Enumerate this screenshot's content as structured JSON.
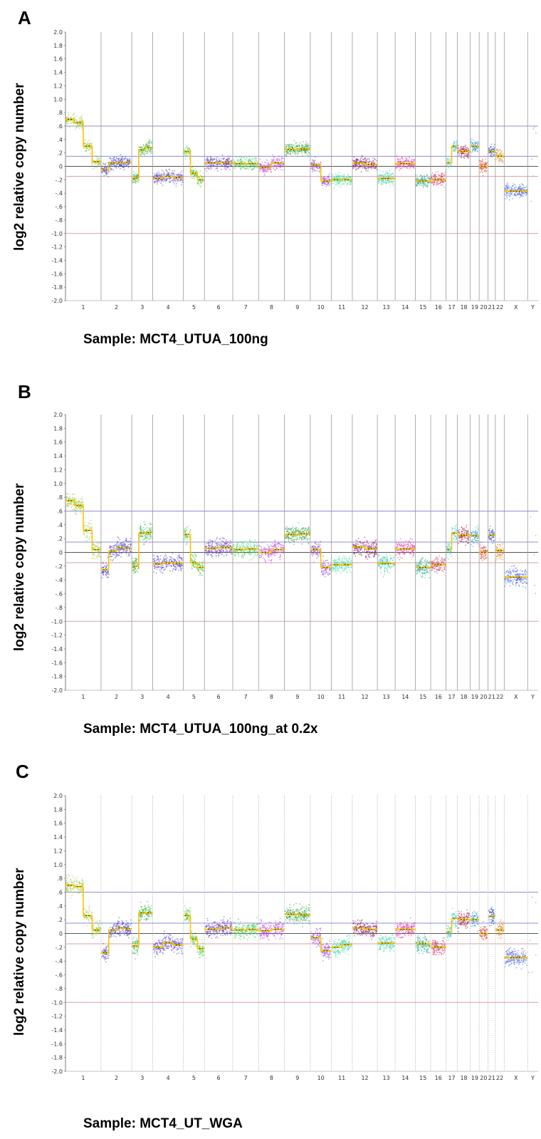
{
  "chart_data": [
    {
      "type": "scatter",
      "panel": "A",
      "ylabel": "log2 relative copy number",
      "sample": "Sample: MCT4_UTUA_100ng",
      "ylim": [
        -2.0,
        2.0
      ],
      "yticks": [
        "2.0",
        "1.8",
        "1.6",
        "1.4",
        "1.2",
        "1.0",
        ".8",
        ".6",
        ".4",
        ".2",
        "0",
        "-.2",
        "-.4",
        "-.6",
        "-.8",
        "-1.0",
        "-1.2",
        "-1.4",
        "-1.6",
        "-1.8",
        "-2.0"
      ],
      "chromosomes": [
        "1",
        "2",
        "3",
        "4",
        "5",
        "6",
        "7",
        "8",
        "9",
        "10",
        "11",
        "12",
        "13",
        "14",
        "15",
        "16",
        "17",
        "18",
        "19",
        "20",
        "21",
        "22",
        "X",
        "Y"
      ],
      "reference_lines": [
        0.6,
        0.15,
        0,
        -0.15,
        -1.0
      ],
      "segments": [
        {
          "chr": "1",
          "levels": [
            0.7,
            0.65,
            0.3,
            0.07
          ]
        },
        {
          "chr": "2",
          "levels": [
            -0.05,
            0.05,
            0.06,
            0.06
          ]
        },
        {
          "chr": "3",
          "levels": [
            -0.18,
            0.25,
            0.28
          ]
        },
        {
          "chr": "4",
          "levels": [
            -0.18,
            -0.15,
            -0.17
          ]
        },
        {
          "chr": "5",
          "levels": [
            0.22,
            -0.1,
            -0.2
          ]
        },
        {
          "chr": "6",
          "levels": [
            0.05,
            0.06
          ]
        },
        {
          "chr": "7",
          "levels": [
            0.04,
            0.04
          ]
        },
        {
          "chr": "8",
          "levels": [
            -0.02,
            0.05
          ]
        },
        {
          "chr": "9",
          "levels": [
            0.25,
            0.26
          ]
        },
        {
          "chr": "10",
          "levels": [
            0.02,
            -0.22
          ]
        },
        {
          "chr": "11",
          "levels": [
            -0.2,
            -0.2
          ]
        },
        {
          "chr": "12",
          "levels": [
            0.05,
            0.03
          ]
        },
        {
          "chr": "13",
          "levels": [
            -0.18
          ]
        },
        {
          "chr": "14",
          "levels": [
            0.04
          ]
        },
        {
          "chr": "15",
          "levels": [
            -0.22
          ]
        },
        {
          "chr": "16",
          "levels": [
            -0.2
          ]
        },
        {
          "chr": "17",
          "levels": [
            0.05,
            0.3
          ]
        },
        {
          "chr": "18",
          "levels": [
            0.22
          ]
        },
        {
          "chr": "19",
          "levels": [
            0.3
          ]
        },
        {
          "chr": "20",
          "levels": [
            0.0
          ]
        },
        {
          "chr": "21",
          "levels": [
            0.22
          ]
        },
        {
          "chr": "22",
          "levels": [
            0.15
          ]
        },
        {
          "chr": "X",
          "levels": [
            -0.37
          ]
        },
        {
          "chr": "Y",
          "levels": []
        }
      ]
    },
    {
      "type": "scatter",
      "panel": "B",
      "ylabel": "log2 relative copy number",
      "sample": "Sample: MCT4_UTUA_100ng_at 0.2x",
      "ylim": [
        -2.0,
        2.0
      ],
      "yticks": [
        "2.0",
        "1.8",
        "1.6",
        "1.4",
        "1.2",
        "1.0",
        ".8",
        ".6",
        ".4",
        ".2",
        "0",
        "-.2",
        "-.4",
        "-.6",
        "-.8",
        "-1.0",
        "-1.2",
        "-1.4",
        "-1.6",
        "-1.8",
        "-2.0"
      ],
      "chromosomes": [
        "1",
        "2",
        "3",
        "4",
        "5",
        "6",
        "7",
        "8",
        "9",
        "10",
        "11",
        "12",
        "13",
        "14",
        "15",
        "16",
        "17",
        "18",
        "19",
        "20",
        "21",
        "22",
        "X",
        "Y"
      ],
      "reference_lines": [
        0.6,
        0.15,
        0,
        -0.15,
        -1.0
      ],
      "segments": [
        {
          "chr": "1",
          "levels": [
            0.75,
            0.68,
            0.32,
            0.04
          ]
        },
        {
          "chr": "2",
          "levels": [
            -0.25,
            0.02,
            0.07,
            0.06
          ]
        },
        {
          "chr": "3",
          "levels": [
            -0.2,
            0.28,
            0.29
          ]
        },
        {
          "chr": "4",
          "levels": [
            -0.17,
            -0.15,
            -0.16
          ]
        },
        {
          "chr": "5",
          "levels": [
            0.26,
            -0.15,
            -0.22
          ]
        },
        {
          "chr": "6",
          "levels": [
            0.06,
            0.07
          ]
        },
        {
          "chr": "7",
          "levels": [
            0.04,
            0.05
          ]
        },
        {
          "chr": "8",
          "levels": [
            0.0,
            0.04
          ]
        },
        {
          "chr": "9",
          "levels": [
            0.26,
            0.27
          ]
        },
        {
          "chr": "10",
          "levels": [
            0.04,
            -0.22
          ]
        },
        {
          "chr": "11",
          "levels": [
            -0.18,
            -0.18
          ]
        },
        {
          "chr": "12",
          "levels": [
            0.08,
            0.05
          ]
        },
        {
          "chr": "13",
          "levels": [
            -0.16
          ]
        },
        {
          "chr": "14",
          "levels": [
            0.05
          ]
        },
        {
          "chr": "15",
          "levels": [
            -0.22
          ]
        },
        {
          "chr": "16",
          "levels": [
            -0.18
          ]
        },
        {
          "chr": "17",
          "levels": [
            0.04,
            0.28
          ]
        },
        {
          "chr": "18",
          "levels": [
            0.25
          ]
        },
        {
          "chr": "19",
          "levels": [
            0.24
          ]
        },
        {
          "chr": "20",
          "levels": [
            0.0
          ]
        },
        {
          "chr": "21",
          "levels": [
            0.25
          ]
        },
        {
          "chr": "22",
          "levels": [
            0.03
          ]
        },
        {
          "chr": "X",
          "levels": [
            -0.36
          ]
        },
        {
          "chr": "Y",
          "levels": []
        }
      ]
    },
    {
      "type": "scatter",
      "panel": "C",
      "ylabel": "log2 relative copy number",
      "sample": "Sample: MCT4_UT_WGA",
      "ylim": [
        -2.0,
        2.0
      ],
      "yticks": [
        "2.0",
        "1.8",
        "1.6",
        "1.4",
        "1.2",
        "1.0",
        ".8",
        ".6",
        ".4",
        ".2",
        "0",
        "-.2",
        "-.4",
        "-.6",
        "-.8",
        "-1.0",
        "-1.2",
        "-1.4",
        "-1.6",
        "-1.8",
        "-2.0"
      ],
      "chromosomes": [
        "1",
        "2",
        "3",
        "4",
        "5",
        "6",
        "7",
        "8",
        "9",
        "10",
        "11",
        "12",
        "13",
        "14",
        "15",
        "16",
        "17",
        "18",
        "19",
        "20",
        "21",
        "22",
        "X",
        "Y"
      ],
      "reference_lines": [
        0.6,
        0.15,
        0,
        -0.15,
        -1.0
      ],
      "segments": [
        {
          "chr": "1",
          "levels": [
            0.7,
            0.68,
            0.26,
            0.05
          ]
        },
        {
          "chr": "2",
          "levels": [
            -0.28,
            0.05,
            0.08,
            0.07
          ]
        },
        {
          "chr": "3",
          "levels": [
            -0.18,
            0.3,
            0.3
          ]
        },
        {
          "chr": "4",
          "levels": [
            -0.2,
            -0.13,
            -0.17
          ]
        },
        {
          "chr": "5",
          "levels": [
            0.26,
            -0.08,
            -0.22
          ]
        },
        {
          "chr": "6",
          "levels": [
            0.06,
            0.08
          ]
        },
        {
          "chr": "7",
          "levels": [
            0.05,
            0.06
          ]
        },
        {
          "chr": "8",
          "levels": [
            0.04,
            0.06
          ]
        },
        {
          "chr": "9",
          "levels": [
            0.28,
            0.27
          ]
        },
        {
          "chr": "10",
          "levels": [
            -0.06,
            -0.25
          ]
        },
        {
          "chr": "11",
          "levels": [
            -0.2,
            -0.16
          ]
        },
        {
          "chr": "12",
          "levels": [
            0.08,
            0.06
          ]
        },
        {
          "chr": "13",
          "levels": [
            -0.14
          ]
        },
        {
          "chr": "14",
          "levels": [
            0.06
          ]
        },
        {
          "chr": "15",
          "levels": [
            -0.15
          ]
        },
        {
          "chr": "16",
          "levels": [
            -0.2
          ]
        },
        {
          "chr": "17",
          "levels": [
            0.02,
            0.22
          ]
        },
        {
          "chr": "18",
          "levels": [
            0.2
          ]
        },
        {
          "chr": "19",
          "levels": [
            0.2
          ]
        },
        {
          "chr": "20",
          "levels": [
            0.0
          ]
        },
        {
          "chr": "21",
          "levels": [
            0.25
          ]
        },
        {
          "chr": "22",
          "levels": [
            0.05
          ]
        },
        {
          "chr": "X",
          "levels": [
            -0.35
          ]
        },
        {
          "chr": "Y",
          "levels": []
        }
      ]
    }
  ],
  "colors": {
    "ref_blue": "#8f8fd8",
    "ref_red": "#d8a0a0",
    "ref_zero": "#555555",
    "segment": "#f5c400",
    "chr_colors": [
      "#9ccc48",
      "#4a3fc8",
      "#38b040",
      "#5a48d0",
      "#58d048",
      "#6a40c0",
      "#50d070",
      "#c050e0",
      "#30a040",
      "#9a48d0",
      "#40e0a8",
      "#8a2070",
      "#40d0b0",
      "#e040a8",
      "#20a890",
      "#d04070",
      "#40d0d8",
      "#a02040",
      "#30a0d0",
      "#e04040",
      "#3050c0",
      "#e09030",
      "#4a60e0",
      "#8080c0"
    ]
  }
}
